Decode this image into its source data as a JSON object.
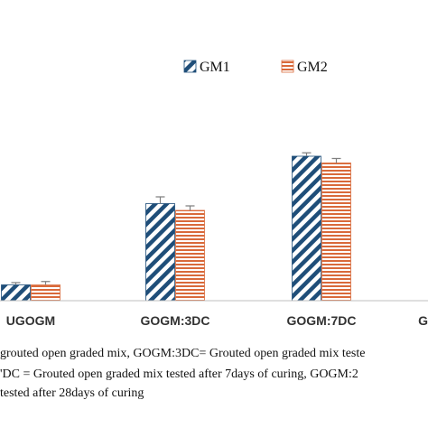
{
  "chart_data": {
    "type": "bar",
    "categories": [
      "UGOGM",
      "GOGM:3DC",
      "GOGM:7DC",
      "G"
    ],
    "series": [
      {
        "name": "GM1",
        "values": [
          0.7,
          4.3,
          6.4,
          null
        ],
        "errors": [
          0.1,
          0.3,
          0.15,
          null
        ]
      },
      {
        "name": "GM2",
        "values": [
          0.7,
          4.0,
          6.1,
          null
        ],
        "errors": [
          0.15,
          0.2,
          0.2,
          null
        ]
      }
    ],
    "ylim": [
      0,
      10
    ],
    "legend_position": "top-right",
    "title": "",
    "xlabel": "",
    "ylabel": ""
  },
  "colors": {
    "GM1": "#1f4e79",
    "GM2": "#d9693a",
    "axis": "#bfbfbf"
  },
  "notes": [
    "grouted open graded mix, GOGM:3DC= Grouted open graded mix teste",
    "'DC = Grouted open graded mix tested after 7days of curing, GOGM:2",
    " tested after 28days of curing"
  ]
}
